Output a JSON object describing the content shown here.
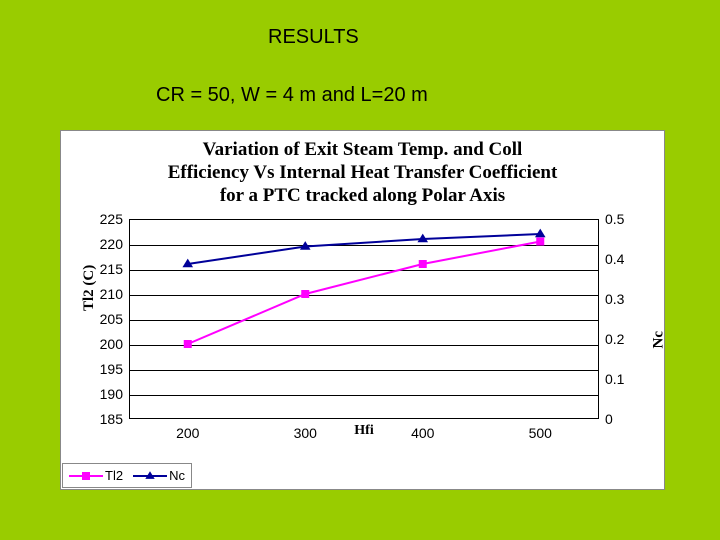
{
  "headings": {
    "results": "RESULTS",
    "params": "CR = 50, W = 4 m and L=20 m"
  },
  "chart": {
    "type": "line",
    "title_lines": [
      "Variation of Exit Steam Temp. and Coll",
      "Efficiency Vs Internal Heat Transfer Coefficient",
      "for a PTC tracked along Polar Axis"
    ],
    "background_color": "#ffffff",
    "grid_color": "#000000",
    "x": {
      "label": "Hfi",
      "min": 150,
      "max": 550,
      "ticks": [
        200,
        300,
        400,
        500
      ]
    },
    "y_left": {
      "label": "Tl2 (C)",
      "min": 185,
      "max": 225,
      "ticks": [
        185,
        190,
        195,
        200,
        205,
        210,
        215,
        220,
        225
      ]
    },
    "y_right": {
      "label": "Nc",
      "min": 0,
      "max": 0.5,
      "ticks": [
        0,
        0.1,
        0.2,
        0.3,
        0.4,
        0.5
      ]
    },
    "series": [
      {
        "name": "Tl2",
        "axis": "left",
        "color": "#ff00ff",
        "marker": "square",
        "marker_size": 8,
        "line_width": 2,
        "x": [
          200,
          300,
          400,
          500
        ],
        "y": [
          200,
          210,
          216,
          220.5
        ]
      },
      {
        "name": "Nc",
        "axis": "left_plotted",
        "color": "#000099",
        "marker": "triangle",
        "marker_size": 9,
        "line_width": 2,
        "x": [
          200,
          300,
          400,
          500
        ],
        "y": [
          216,
          219.5,
          221,
          222
        ]
      }
    ],
    "legend": {
      "items": [
        {
          "label": "Tl2",
          "color": "#ff00ff",
          "marker": "square"
        },
        {
          "label": "Nc",
          "color": "#000099",
          "marker": "triangle"
        }
      ]
    }
  }
}
